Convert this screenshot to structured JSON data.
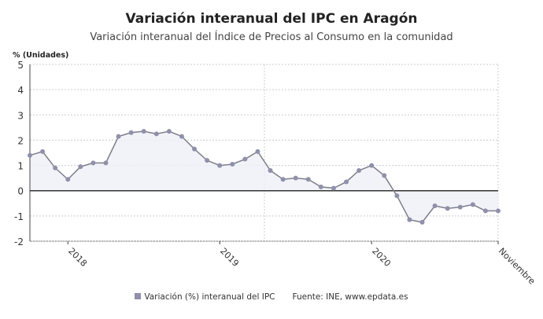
{
  "chart_data": {
    "type": "line",
    "title": "Variación interanual del IPC en Aragón",
    "subtitle": "Variación interanual del Índice de Precios al Consumo en la comunidad",
    "ylabel": "% (Unidades)",
    "ylim": [
      -2,
      5
    ],
    "yticks": [
      5,
      4,
      3,
      2,
      1,
      0,
      -1,
      -2
    ],
    "xticks": [
      {
        "x": "2018-01",
        "label": "2018"
      },
      {
        "x": "2019-01",
        "label": "2019"
      },
      {
        "x": "2020-01",
        "label": "2020"
      },
      {
        "x": "2020-11",
        "label": "Noviembre"
      }
    ],
    "grid": true,
    "legend_position": "bottom",
    "series": [
      {
        "name": "Variación (%) interanual del IPC",
        "color": "#8f90aa",
        "x": [
          "2017-10",
          "2017-11",
          "2017-12",
          "2018-01",
          "2018-02",
          "2018-03",
          "2018-04",
          "2018-05",
          "2018-06",
          "2018-07",
          "2018-08",
          "2018-09",
          "2018-10",
          "2018-11",
          "2018-12",
          "2019-01",
          "2019-02",
          "2019-03",
          "2019-04",
          "2019-05",
          "2019-06",
          "2019-07",
          "2019-08",
          "2019-09",
          "2019-10",
          "2019-11",
          "2019-12",
          "2020-01",
          "2020-02",
          "2020-03",
          "2020-04",
          "2020-05",
          "2020-06",
          "2020-07",
          "2020-08",
          "2020-09",
          "2020-10",
          "2020-11"
        ],
        "values": [
          1.4,
          1.55,
          0.9,
          0.45,
          0.95,
          1.1,
          1.1,
          2.15,
          2.3,
          2.35,
          2.25,
          2.35,
          2.15,
          1.65,
          1.2,
          1.0,
          1.05,
          1.25,
          1.55,
          0.8,
          0.45,
          0.5,
          0.45,
          0.15,
          0.1,
          0.35,
          0.8,
          1.0,
          0.6,
          -0.2,
          -1.15,
          -1.25,
          -0.6,
          -0.7,
          -0.65,
          -0.55,
          -0.8,
          -0.8
        ]
      }
    ],
    "source": "Fuente: INE, www.epdata.es"
  }
}
